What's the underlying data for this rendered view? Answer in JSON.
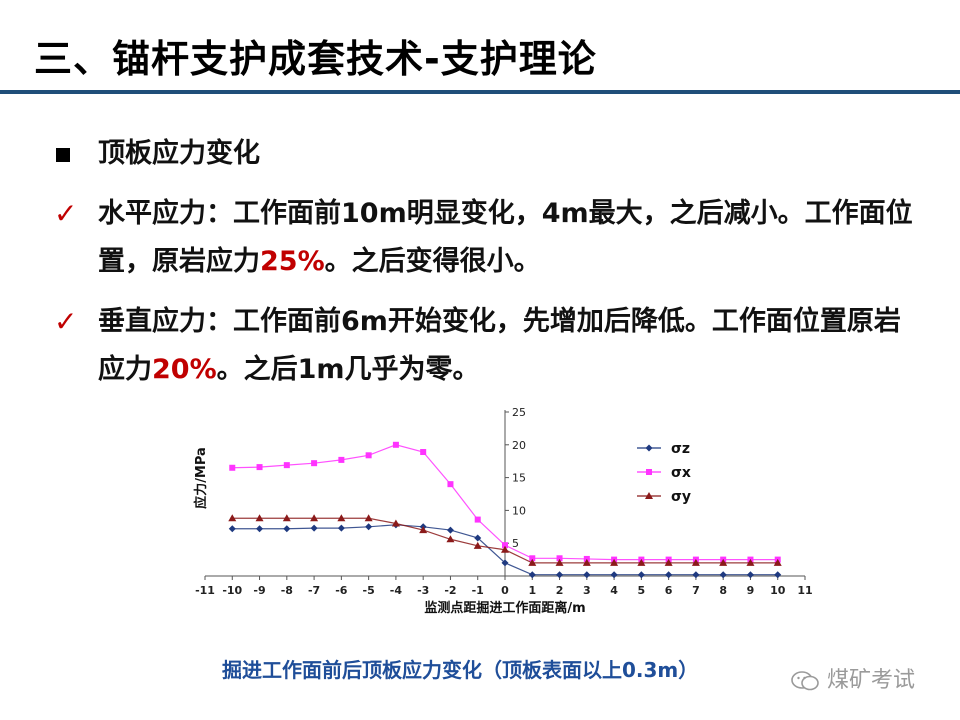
{
  "slide": {
    "title": "三、锚杆支护成套技术-支护理论"
  },
  "bullets": [
    {
      "marker": "square",
      "text_a": "顶板应力变化",
      "highlight": "",
      "text_b": ""
    },
    {
      "marker": "check",
      "text_a": "水平应力：工作面前10m明显变化，4m最大，之后减小。工作面位置，原岩应力",
      "highlight": "25%",
      "text_b": "。之后变得很小。"
    },
    {
      "marker": "check",
      "text_a": "垂直应力：工作面前6m开始变化，先增加后降低。工作面位置原岩应力",
      "highlight": "20%",
      "text_b": "。之后1m几乎为零。"
    }
  ],
  "chart_data": {
    "type": "line",
    "xlabel": "监测点距掘进工作面距离/m",
    "ylabel": "应力/MPa",
    "xlim": [
      -11,
      11
    ],
    "ylim": [
      0,
      25
    ],
    "x_ticks": [
      -11,
      -10,
      -9,
      -8,
      -7,
      -6,
      -5,
      -4,
      -3,
      -2,
      -1,
      0,
      1,
      2,
      3,
      4,
      5,
      6,
      7,
      8,
      9,
      10,
      11
    ],
    "y_ticks": [
      5,
      10,
      15,
      20,
      25
    ],
    "grid": false,
    "legend_position": "right",
    "x": [
      -10,
      -9,
      -8,
      -7,
      -6,
      -5,
      -4,
      -3,
      -2,
      -1,
      0,
      1,
      2,
      3,
      4,
      5,
      6,
      7,
      8,
      9,
      10
    ],
    "series": [
      {
        "name": "σz",
        "color": "#1f3a80",
        "marker": "diamond",
        "values": [
          7.2,
          7.2,
          7.2,
          7.3,
          7.3,
          7.5,
          7.8,
          7.5,
          7.0,
          5.8,
          2.0,
          0.2,
          0.2,
          0.2,
          0.2,
          0.2,
          0.2,
          0.2,
          0.2,
          0.2,
          0.2
        ]
      },
      {
        "name": "σx",
        "color": "#ff33ff",
        "marker": "square",
        "values": [
          16.5,
          16.6,
          16.9,
          17.2,
          17.7,
          18.4,
          20.0,
          18.9,
          14.0,
          8.6,
          4.7,
          2.7,
          2.7,
          2.6,
          2.5,
          2.5,
          2.5,
          2.5,
          2.5,
          2.5,
          2.5
        ]
      },
      {
        "name": "σy",
        "color": "#8b1a1a",
        "marker": "triangle",
        "values": [
          8.8,
          8.8,
          8.8,
          8.8,
          8.8,
          8.8,
          8.0,
          7.0,
          5.6,
          4.6,
          4.0,
          2.0,
          2.0,
          2.0,
          2.0,
          2.0,
          2.0,
          2.0,
          2.0,
          2.0,
          2.0
        ]
      }
    ]
  },
  "caption": "掘进工作面前后顶板应力变化（顶板表面以上0.3m）",
  "watermark": {
    "text": "煤矿考试",
    "icon": "wechat-icon",
    "color": "#9a9a9a"
  },
  "colors": {
    "accent_rule": "#1f4e79",
    "highlight": "#c00000",
    "caption": "#1f4e99"
  }
}
